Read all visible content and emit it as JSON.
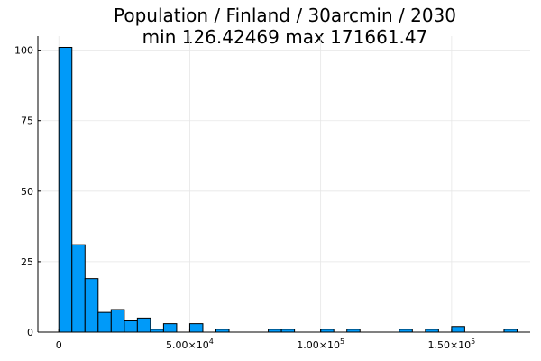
{
  "chart_data": {
    "type": "bar",
    "title_line1": "Population / Finland / 30arcmin / 2030",
    "title_line2": "min 126.42469  max 171661.47",
    "xlabel": "",
    "ylabel": "",
    "bin_width": 5000,
    "bins": [
      {
        "x0": -5000,
        "count": 0
      },
      {
        "x0": 0,
        "count": 101
      },
      {
        "x0": 5000,
        "count": 31
      },
      {
        "x0": 10000,
        "count": 19
      },
      {
        "x0": 15000,
        "count": 7
      },
      {
        "x0": 20000,
        "count": 8
      },
      {
        "x0": 25000,
        "count": 4
      },
      {
        "x0": 30000,
        "count": 5
      },
      {
        "x0": 35000,
        "count": 1
      },
      {
        "x0": 40000,
        "count": 3
      },
      {
        "x0": 45000,
        "count": 0
      },
      {
        "x0": 50000,
        "count": 3
      },
      {
        "x0": 55000,
        "count": 0
      },
      {
        "x0": 60000,
        "count": 1
      },
      {
        "x0": 65000,
        "count": 0
      },
      {
        "x0": 70000,
        "count": 0
      },
      {
        "x0": 75000,
        "count": 0
      },
      {
        "x0": 80000,
        "count": 1
      },
      {
        "x0": 85000,
        "count": 1
      },
      {
        "x0": 90000,
        "count": 0
      },
      {
        "x0": 95000,
        "count": 0
      },
      {
        "x0": 100000,
        "count": 1
      },
      {
        "x0": 105000,
        "count": 0
      },
      {
        "x0": 110000,
        "count": 1
      },
      {
        "x0": 115000,
        "count": 0
      },
      {
        "x0": 120000,
        "count": 0
      },
      {
        "x0": 125000,
        "count": 0
      },
      {
        "x0": 130000,
        "count": 1
      },
      {
        "x0": 135000,
        "count": 0
      },
      {
        "x0": 140000,
        "count": 1
      },
      {
        "x0": 145000,
        "count": 0
      },
      {
        "x0": 150000,
        "count": 2
      },
      {
        "x0": 155000,
        "count": 0
      },
      {
        "x0": 160000,
        "count": 0
      },
      {
        "x0": 165000,
        "count": 0
      },
      {
        "x0": 170000,
        "count": 1
      }
    ],
    "xlim": [
      -8000,
      180000
    ],
    "ylim": [
      0,
      105
    ],
    "x_ticks": [
      {
        "value": 0,
        "mantissa": "0",
        "exp": ""
      },
      {
        "value": 50000,
        "mantissa": "5.00×10",
        "exp": "4"
      },
      {
        "value": 100000,
        "mantissa": "1.00×10",
        "exp": "5"
      },
      {
        "value": 150000,
        "mantissa": "1.50×10",
        "exp": "5"
      }
    ],
    "y_ticks": [
      {
        "value": 0,
        "label": "0"
      },
      {
        "value": 25,
        "label": "25"
      },
      {
        "value": 50,
        "label": "50"
      },
      {
        "value": 75,
        "label": "75"
      },
      {
        "value": 100,
        "label": "100"
      }
    ],
    "grid": true,
    "legend": "none",
    "bar_color": "#009af9"
  }
}
